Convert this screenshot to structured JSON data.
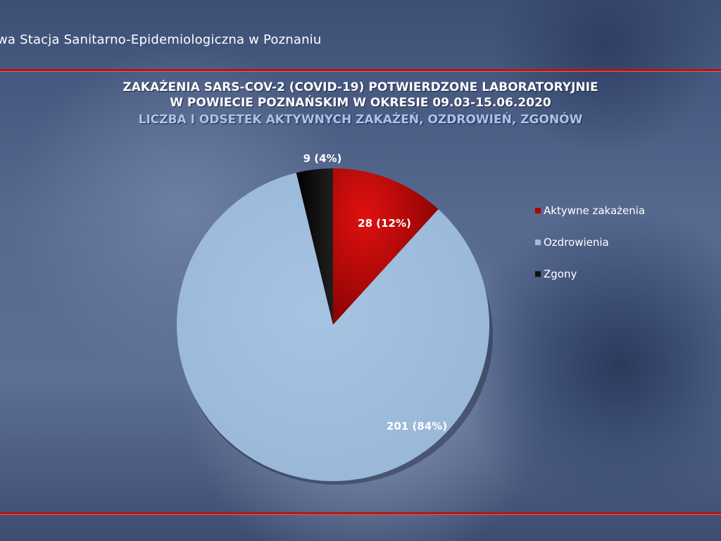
{
  "header": {
    "institution": "wa Stacja Sanitarno-Epidemiologiczna w Poznaniu"
  },
  "titles": {
    "line1": "ZAKAŻENIA SARS-COV-2 (COVID-19) POTWIERDZONE LABORATORYJNIE",
    "line2": "W POWIECIE POZNAŃSKIM W OKRESIE 09.03-15.06.2020",
    "line3": "LICZBA I ODSETEK AKTYWNYCH ZAKAŻEŃ, OZDROWIEŃ, ZGONÓW"
  },
  "chart_data": {
    "type": "pie",
    "title": "ZAKAŻENIA SARS-COV-2 (COVID-19) POTWIERDZONE LABORATORYJNIE W POWIECIE POZNAŃSKIM W OKRESIE 09.03-15.06.2020",
    "subtitle": "LICZBA I ODSETEK AKTYWNYCH ZAKAŻEŃ, OZDROWIEŃ, ZGONÓW",
    "legend_position": "right",
    "slices": [
      {
        "name": "Aktywne zakażenia",
        "value": 28,
        "label": "28 (12%)",
        "color": "#b00000"
      },
      {
        "name": "Ozdrowienia",
        "value": 201,
        "label": "201 (84%)",
        "color": "#9dbbdb"
      },
      {
        "name": "Zgony",
        "value": 9,
        "label": "9 (4%)",
        "color": "#111111"
      }
    ]
  }
}
